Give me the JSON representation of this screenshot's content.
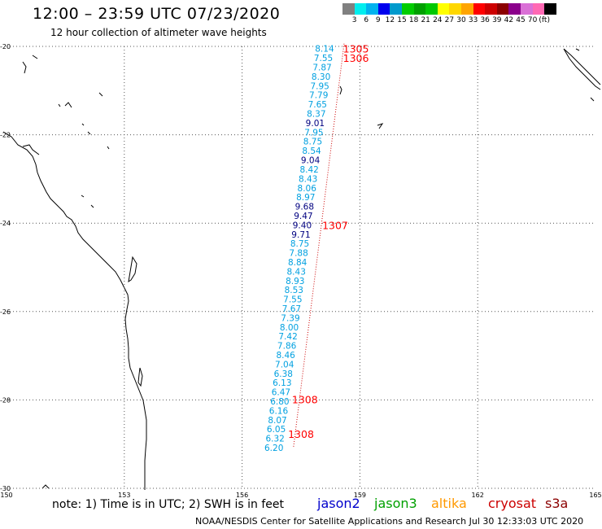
{
  "header": {
    "title": "12:00 – 23:59 UTC 07/23/2020",
    "subtitle": "12 hour collection of altimeter wave heights"
  },
  "scale": {
    "colors": [
      "#808080",
      "#00eeee",
      "#00b2ee",
      "#0000ee",
      "#009acd",
      "#00cd00",
      "#00a000",
      "#00c800",
      "#ffff00",
      "#ffd700",
      "#ffa500",
      "#ff0000",
      "#cd0000",
      "#8b0000",
      "#8b008b",
      "#da70d6",
      "#ff69b4",
      "#000000"
    ],
    "labels": [
      "3",
      "6",
      "9",
      "12",
      "15",
      "18",
      "21",
      "24",
      "27",
      "30",
      "33",
      "36",
      "39",
      "42",
      "45",
      "70",
      "(ft)"
    ]
  },
  "axes": {
    "lat_labels": [
      "-20",
      "-22",
      "-24",
      "-26",
      "-28",
      "-30"
    ],
    "lon_labels": [
      "150",
      "153",
      "156",
      "159",
      "162",
      "165"
    ]
  },
  "observations": [
    {
      "v": "8.14",
      "lat": -20.05,
      "lon": 158.1,
      "c": "#00a0e0"
    },
    {
      "v": "7.55",
      "lat": -20.26,
      "lon": 158.07,
      "c": "#00a0e0"
    },
    {
      "v": "7.87",
      "lat": -20.47,
      "lon": 158.04,
      "c": "#00a0e0"
    },
    {
      "v": "8.30",
      "lat": -20.68,
      "lon": 158.01,
      "c": "#00a0e0"
    },
    {
      "v": "7.95",
      "lat": -20.89,
      "lon": 157.98,
      "c": "#00a0e0"
    },
    {
      "v": "7.79",
      "lat": -21.1,
      "lon": 157.95,
      "c": "#00a0e0"
    },
    {
      "v": "7.65",
      "lat": -21.31,
      "lon": 157.92,
      "c": "#00a0e0"
    },
    {
      "v": "8.37",
      "lat": -21.52,
      "lon": 157.89,
      "c": "#00a0e0"
    },
    {
      "v": "9.01",
      "lat": -21.73,
      "lon": 157.86,
      "c": "#000080"
    },
    {
      "v": "7.95",
      "lat": -21.94,
      "lon": 157.83,
      "c": "#00a0e0"
    },
    {
      "v": "8.75",
      "lat": -22.15,
      "lon": 157.8,
      "c": "#00a0e0"
    },
    {
      "v": "8.54",
      "lat": -22.36,
      "lon": 157.77,
      "c": "#00a0e0"
    },
    {
      "v": "9.04",
      "lat": -22.57,
      "lon": 157.74,
      "c": "#000080"
    },
    {
      "v": "8.42",
      "lat": -22.78,
      "lon": 157.71,
      "c": "#00a0e0"
    },
    {
      "v": "8.43",
      "lat": -22.99,
      "lon": 157.68,
      "c": "#00a0e0"
    },
    {
      "v": "8.06",
      "lat": -23.2,
      "lon": 157.65,
      "c": "#00a0e0"
    },
    {
      "v": "8.97",
      "lat": -23.41,
      "lon": 157.62,
      "c": "#00a0e0"
    },
    {
      "v": "9.68",
      "lat": -23.62,
      "lon": 157.59,
      "c": "#000080"
    },
    {
      "v": "9.47",
      "lat": -23.83,
      "lon": 157.56,
      "c": "#000080"
    },
    {
      "v": "9.40",
      "lat": -24.04,
      "lon": 157.53,
      "c": "#000080"
    },
    {
      "v": "9.71",
      "lat": -24.25,
      "lon": 157.5,
      "c": "#000080"
    },
    {
      "v": "8.75",
      "lat": -24.46,
      "lon": 157.47,
      "c": "#00a0e0"
    },
    {
      "v": "7.88",
      "lat": -24.67,
      "lon": 157.44,
      "c": "#00a0e0"
    },
    {
      "v": "8.84",
      "lat": -24.88,
      "lon": 157.41,
      "c": "#00a0e0"
    },
    {
      "v": "8.43",
      "lat": -25.09,
      "lon": 157.38,
      "c": "#00a0e0"
    },
    {
      "v": "8.93",
      "lat": -25.3,
      "lon": 157.35,
      "c": "#00a0e0"
    },
    {
      "v": "8.53",
      "lat": -25.51,
      "lon": 157.32,
      "c": "#00a0e0"
    },
    {
      "v": "7.55",
      "lat": -25.72,
      "lon": 157.29,
      "c": "#00a0e0"
    },
    {
      "v": "7.67",
      "lat": -25.93,
      "lon": 157.26,
      "c": "#00a0e0"
    },
    {
      "v": "7.39",
      "lat": -26.14,
      "lon": 157.23,
      "c": "#00a0e0"
    },
    {
      "v": "8.00",
      "lat": -26.35,
      "lon": 157.2,
      "c": "#00a0e0"
    },
    {
      "v": "7.42",
      "lat": -26.56,
      "lon": 157.17,
      "c": "#00a0e0"
    },
    {
      "v": "7.86",
      "lat": -26.77,
      "lon": 157.14,
      "c": "#00a0e0"
    },
    {
      "v": "8.46",
      "lat": -26.98,
      "lon": 157.11,
      "c": "#00a0e0"
    },
    {
      "v": "7.04",
      "lat": -27.19,
      "lon": 157.08,
      "c": "#00a0e0"
    },
    {
      "v": "6.38",
      "lat": -27.4,
      "lon": 157.05,
      "c": "#00a0e0"
    },
    {
      "v": "6.13",
      "lat": -27.61,
      "lon": 157.02,
      "c": "#00a0e0"
    },
    {
      "v": "6.47",
      "lat": -27.82,
      "lon": 156.99,
      "c": "#00a0e0"
    },
    {
      "v": "6.80",
      "lat": -28.03,
      "lon": 156.96,
      "c": "#00a0e0"
    },
    {
      "v": "6.16",
      "lat": -28.24,
      "lon": 156.93,
      "c": "#00a0e0"
    },
    {
      "v": "8.07",
      "lat": -28.45,
      "lon": 156.9,
      "c": "#00a0e0"
    },
    {
      "v": "6.05",
      "lat": -28.66,
      "lon": 156.87,
      "c": "#00a0e0"
    },
    {
      "v": "6.32",
      "lat": -28.87,
      "lon": 156.84,
      "c": "#00a0e0"
    },
    {
      "v": "6.20",
      "lat": -29.08,
      "lon": 156.81,
      "c": "#00a0e0"
    }
  ],
  "time_marks": [
    {
      "label": "1305",
      "lat": -20.05,
      "lon": 158.9
    },
    {
      "label": "1306",
      "lat": -20.26,
      "lon": 158.9
    },
    {
      "label": "1307",
      "lat": -24.04,
      "lon": 158.37
    },
    {
      "label": "1308",
      "lat": -27.98,
      "lon": 157.6
    },
    {
      "label": "1308",
      "lat": -28.77,
      "lon": 157.5
    }
  ],
  "footer": {
    "note": "note:  1) Time is in UTC;  2) SWH is in feet",
    "satellites": [
      {
        "name": "jason2",
        "color": "#0000cc",
        "offset": 0
      },
      {
        "name": "jason3",
        "color": "#00a000",
        "offset": 70
      },
      {
        "name": "altika",
        "color": "#ff9900",
        "offset": 140
      },
      {
        "name": "cryosat",
        "color": "#cc0000",
        "offset": 210
      },
      {
        "name": "s3a",
        "color": "#8b0000",
        "offset": 280
      }
    ],
    "credit": "NOAA/NESDIS Center for Satellite Applications and Research     Jul 30 12:33:03 UTC 2020"
  }
}
